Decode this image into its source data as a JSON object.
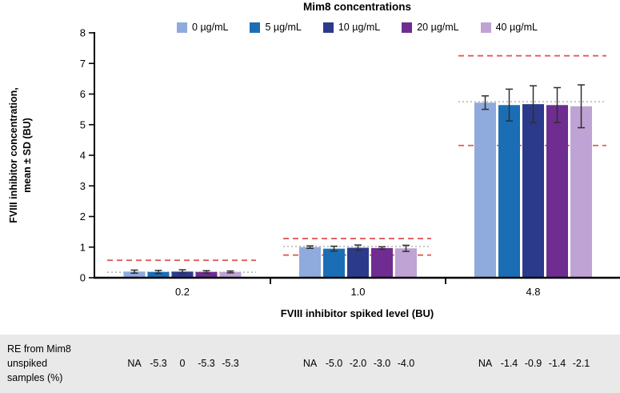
{
  "chart_data": {
    "type": "bar",
    "title": "Mim8 concentrations",
    "xlabel": "FVIII inhibitor spiked level (BU)",
    "ylabel": "FVIII inhibitor concentration, mean ± SD (BU)",
    "ylabel_lines": [
      "FVIII inhibitor concentration,",
      "mean ± SD (BU)"
    ],
    "ylim": [
      0,
      8
    ],
    "yticks": [
      0,
      1,
      2,
      3,
      4,
      5,
      6,
      7,
      8
    ],
    "categories": [
      "0.2",
      "1.0",
      "4.8"
    ],
    "legend_position": "top",
    "grid": false,
    "series": [
      {
        "name": "0 µg/mL",
        "color": "#8FAADC",
        "values": [
          0.2,
          1.0,
          5.72
        ],
        "sd": [
          0.05,
          0.04,
          0.22
        ]
      },
      {
        "name": "5 µg/mL",
        "color": "#1B6EB5",
        "values": [
          0.19,
          0.95,
          5.64
        ],
        "sd": [
          0.05,
          0.08,
          0.52
        ]
      },
      {
        "name": "10 µg/mL",
        "color": "#2C3A8C",
        "values": [
          0.2,
          0.98,
          5.67
        ],
        "sd": [
          0.06,
          0.09,
          0.6
        ]
      },
      {
        "name": "20 µg/mL",
        "color": "#6F2D91",
        "values": [
          0.19,
          0.97,
          5.64
        ],
        "sd": [
          0.04,
          0.04,
          0.57
        ]
      },
      {
        "name": "40 µg/mL",
        "color": "#BFA3D4",
        "values": [
          0.19,
          0.96,
          5.6
        ],
        "sd": [
          0.03,
          0.1,
          0.7
        ]
      }
    ],
    "reference_lines": {
      "unspiked_mean_gray_dotted": [
        0.18,
        1.02,
        5.75
      ],
      "acceptance_limits_red_dashed": [
        [
          0.57
        ],
        [
          1.28,
          0.74
        ],
        [
          7.25,
          4.32
        ]
      ]
    }
  },
  "re_table": {
    "header": "RE from Mim8\nunspiked\nsamples (%)",
    "groups": [
      [
        "NA",
        "-5.3",
        "0",
        "-5.3",
        "-5.3"
      ],
      [
        "NA",
        "-5.0",
        "-2.0",
        "-3.0",
        "-4.0"
      ],
      [
        "NA",
        "-1.4",
        "-0.9",
        "-1.4",
        "-2.1"
      ]
    ]
  },
  "colors": {
    "red_dashed": "#E15B5B",
    "gray_dotted": "#AEAEAE",
    "error_bar": "#2F2F2F",
    "axis": "#000000",
    "table_bg": "#E9E9E9"
  }
}
